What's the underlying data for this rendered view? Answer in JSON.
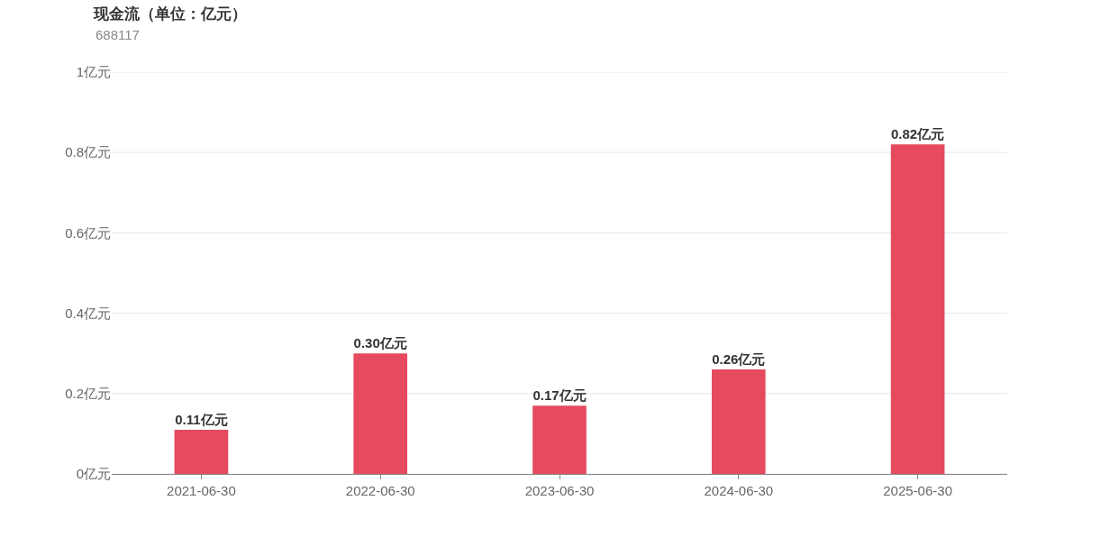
{
  "chart_data": {
    "type": "bar",
    "title": "现金流（单位：亿元）",
    "subtitle": "688117",
    "categories": [
      "2021-06-30",
      "2022-06-30",
      "2023-06-30",
      "2024-06-30",
      "2025-06-30"
    ],
    "values": [
      0.11,
      0.3,
      0.17,
      0.26,
      0.82
    ],
    "value_labels": [
      "0.11亿元",
      "0.30亿元",
      "0.17亿元",
      "0.26亿元",
      "0.82亿元"
    ],
    "color": "#e64a5e",
    "ylim": [
      0,
      1
    ],
    "yticks": [
      {
        "value": 0,
        "label": "0亿元"
      },
      {
        "value": 0.2,
        "label": "0.2亿元"
      },
      {
        "value": 0.4,
        "label": "0.4亿元"
      },
      {
        "value": 0.6,
        "label": "0.6亿元"
      },
      {
        "value": 0.8,
        "label": "0.8亿元"
      },
      {
        "value": 1,
        "label": "1亿元"
      }
    ],
    "grid": "y"
  }
}
